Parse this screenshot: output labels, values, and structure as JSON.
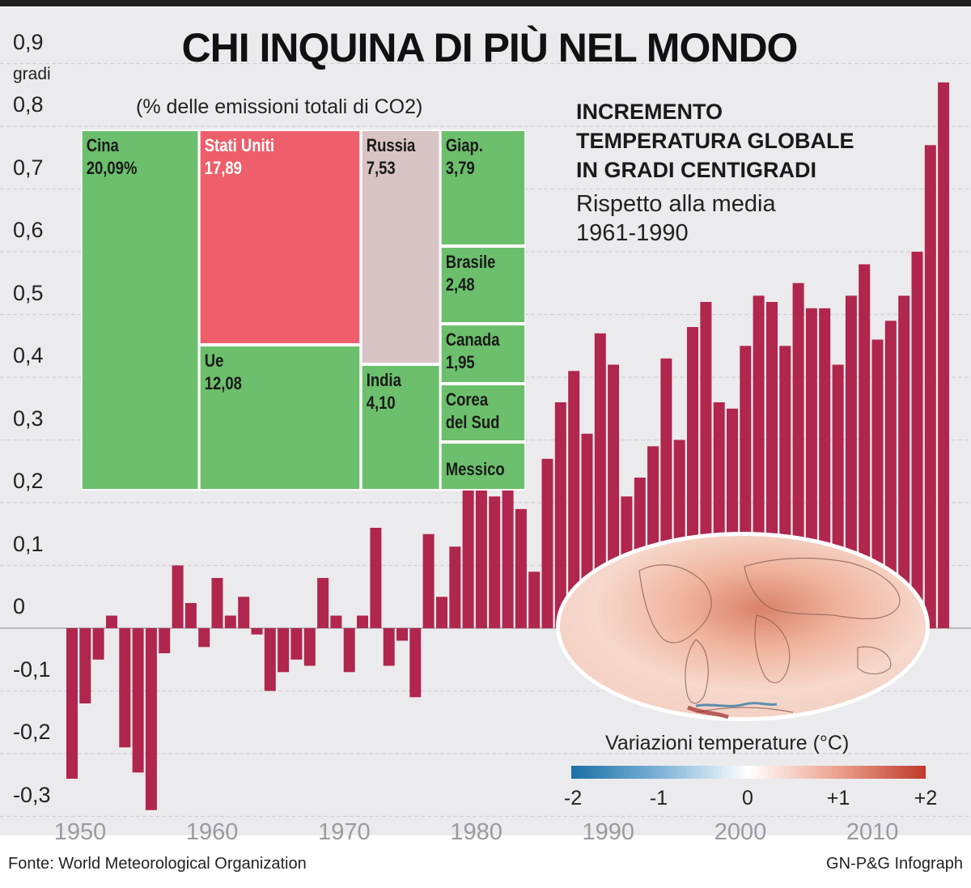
{
  "title": "CHI INQUINA DI PIÙ NEL MONDO",
  "y_unit": "gradi",
  "source": "Fonte: World Meteorological Organization",
  "credit": "GN-P&G Infograph",
  "info": {
    "line1": "INCREMENTO",
    "line2": "TEMPERATURA GLOBALE",
    "line3": "IN GRADI CENTIGRADI",
    "line4": "Rispetto alla media",
    "line5": "1961-1990"
  },
  "colors": {
    "bar": "#b0264d",
    "treemap_green": "#6cbf6c",
    "usa": "#ee5f6b",
    "russia": "#d8c3c5",
    "plot_bg": "#ebebee"
  },
  "chart_data": [
    {
      "type": "bar",
      "title": "INCREMENTO TEMPERATURA GLOBALE IN GRADI CENTIGRADI",
      "subtitle": "Rispetto alla media 1961-1990",
      "ylabel": "gradi",
      "ylim": [
        -0.3,
        0.9
      ],
      "y_ticks": [
        "0,9",
        "0,8",
        "0,7",
        "0,6",
        "0,5",
        "0,4",
        "0,3",
        "0,2",
        "0,1",
        "0",
        "-0,1",
        "-0,2",
        "-0,3"
      ],
      "x_ticks": [
        "1950",
        "1960",
        "1970",
        "1980",
        "1990",
        "2000",
        "2010"
      ],
      "x": [
        1950,
        1951,
        1952,
        1953,
        1954,
        1955,
        1956,
        1957,
        1958,
        1959,
        1960,
        1961,
        1962,
        1963,
        1964,
        1965,
        1966,
        1967,
        1968,
        1969,
        1970,
        1971,
        1972,
        1973,
        1974,
        1975,
        1976,
        1977,
        1978,
        1979,
        1980,
        1981,
        1982,
        1983,
        1984,
        1985,
        1986,
        1987,
        1988,
        1989,
        1990,
        1991,
        1992,
        1993,
        1994,
        1995,
        1996,
        1997,
        1998,
        1999,
        2000,
        2001,
        2002,
        2003,
        2004,
        2005,
        2006,
        2007,
        2008,
        2009,
        2010,
        2011,
        2012,
        2013,
        2014,
        2015,
        2016
      ],
      "values": [
        -0.24,
        -0.12,
        -0.05,
        0.02,
        -0.19,
        -0.23,
        -0.29,
        -0.04,
        0.1,
        0.04,
        -0.03,
        0.08,
        0.02,
        0.05,
        -0.01,
        -0.1,
        -0.07,
        -0.05,
        -0.06,
        0.08,
        0.02,
        -0.07,
        0.02,
        0.16,
        -0.06,
        -0.02,
        -0.11,
        0.15,
        0.05,
        0.13,
        0.25,
        0.29,
        0.21,
        0.32,
        0.19,
        0.09,
        0.27,
        0.36,
        0.41,
        0.31,
        0.47,
        0.42,
        0.21,
        0.24,
        0.29,
        0.43,
        0.3,
        0.48,
        0.52,
        0.36,
        0.35,
        0.45,
        0.53,
        0.52,
        0.45,
        0.55,
        0.51,
        0.51,
        0.42,
        0.53,
        0.58,
        0.46,
        0.49,
        0.53,
        0.6,
        0.77,
        0.87
      ]
    },
    {
      "type": "treemap",
      "title": "(% delle emissioni totali di CO2)",
      "cells": [
        {
          "name": "Cina",
          "value": "20,09%",
          "color": "#6cbf6c"
        },
        {
          "name": "Stati Uniti",
          "value": "17,89",
          "color": "#ee5f6b"
        },
        {
          "name": "Ue",
          "value": "12,08",
          "color": "#6cbf6c"
        },
        {
          "name": "Russia",
          "value": "7,53",
          "color": "#d8c3c5"
        },
        {
          "name": "India",
          "value": "4,10",
          "color": "#6cbf6c"
        },
        {
          "name": "Giap.",
          "value": "3,79",
          "color": "#6cbf6c"
        },
        {
          "name": "Brasile",
          "value": "2,48",
          "color": "#6cbf6c"
        },
        {
          "name": "Canada",
          "value": "1,95",
          "color": "#6cbf6c"
        },
        {
          "name": "Corea del Sud",
          "value": "",
          "color": "#6cbf6c"
        },
        {
          "name": "Messico",
          "value": "",
          "color": "#6cbf6c"
        }
      ]
    },
    {
      "type": "heatmap",
      "title": "Variazioni temperature (°C)",
      "scale_ticks": [
        "-2",
        "-1",
        "0",
        "+1",
        "+2"
      ],
      "range": [
        -2,
        2
      ],
      "colors": [
        "#2a6fa6",
        "#ffffff",
        "#c0392b"
      ]
    }
  ]
}
